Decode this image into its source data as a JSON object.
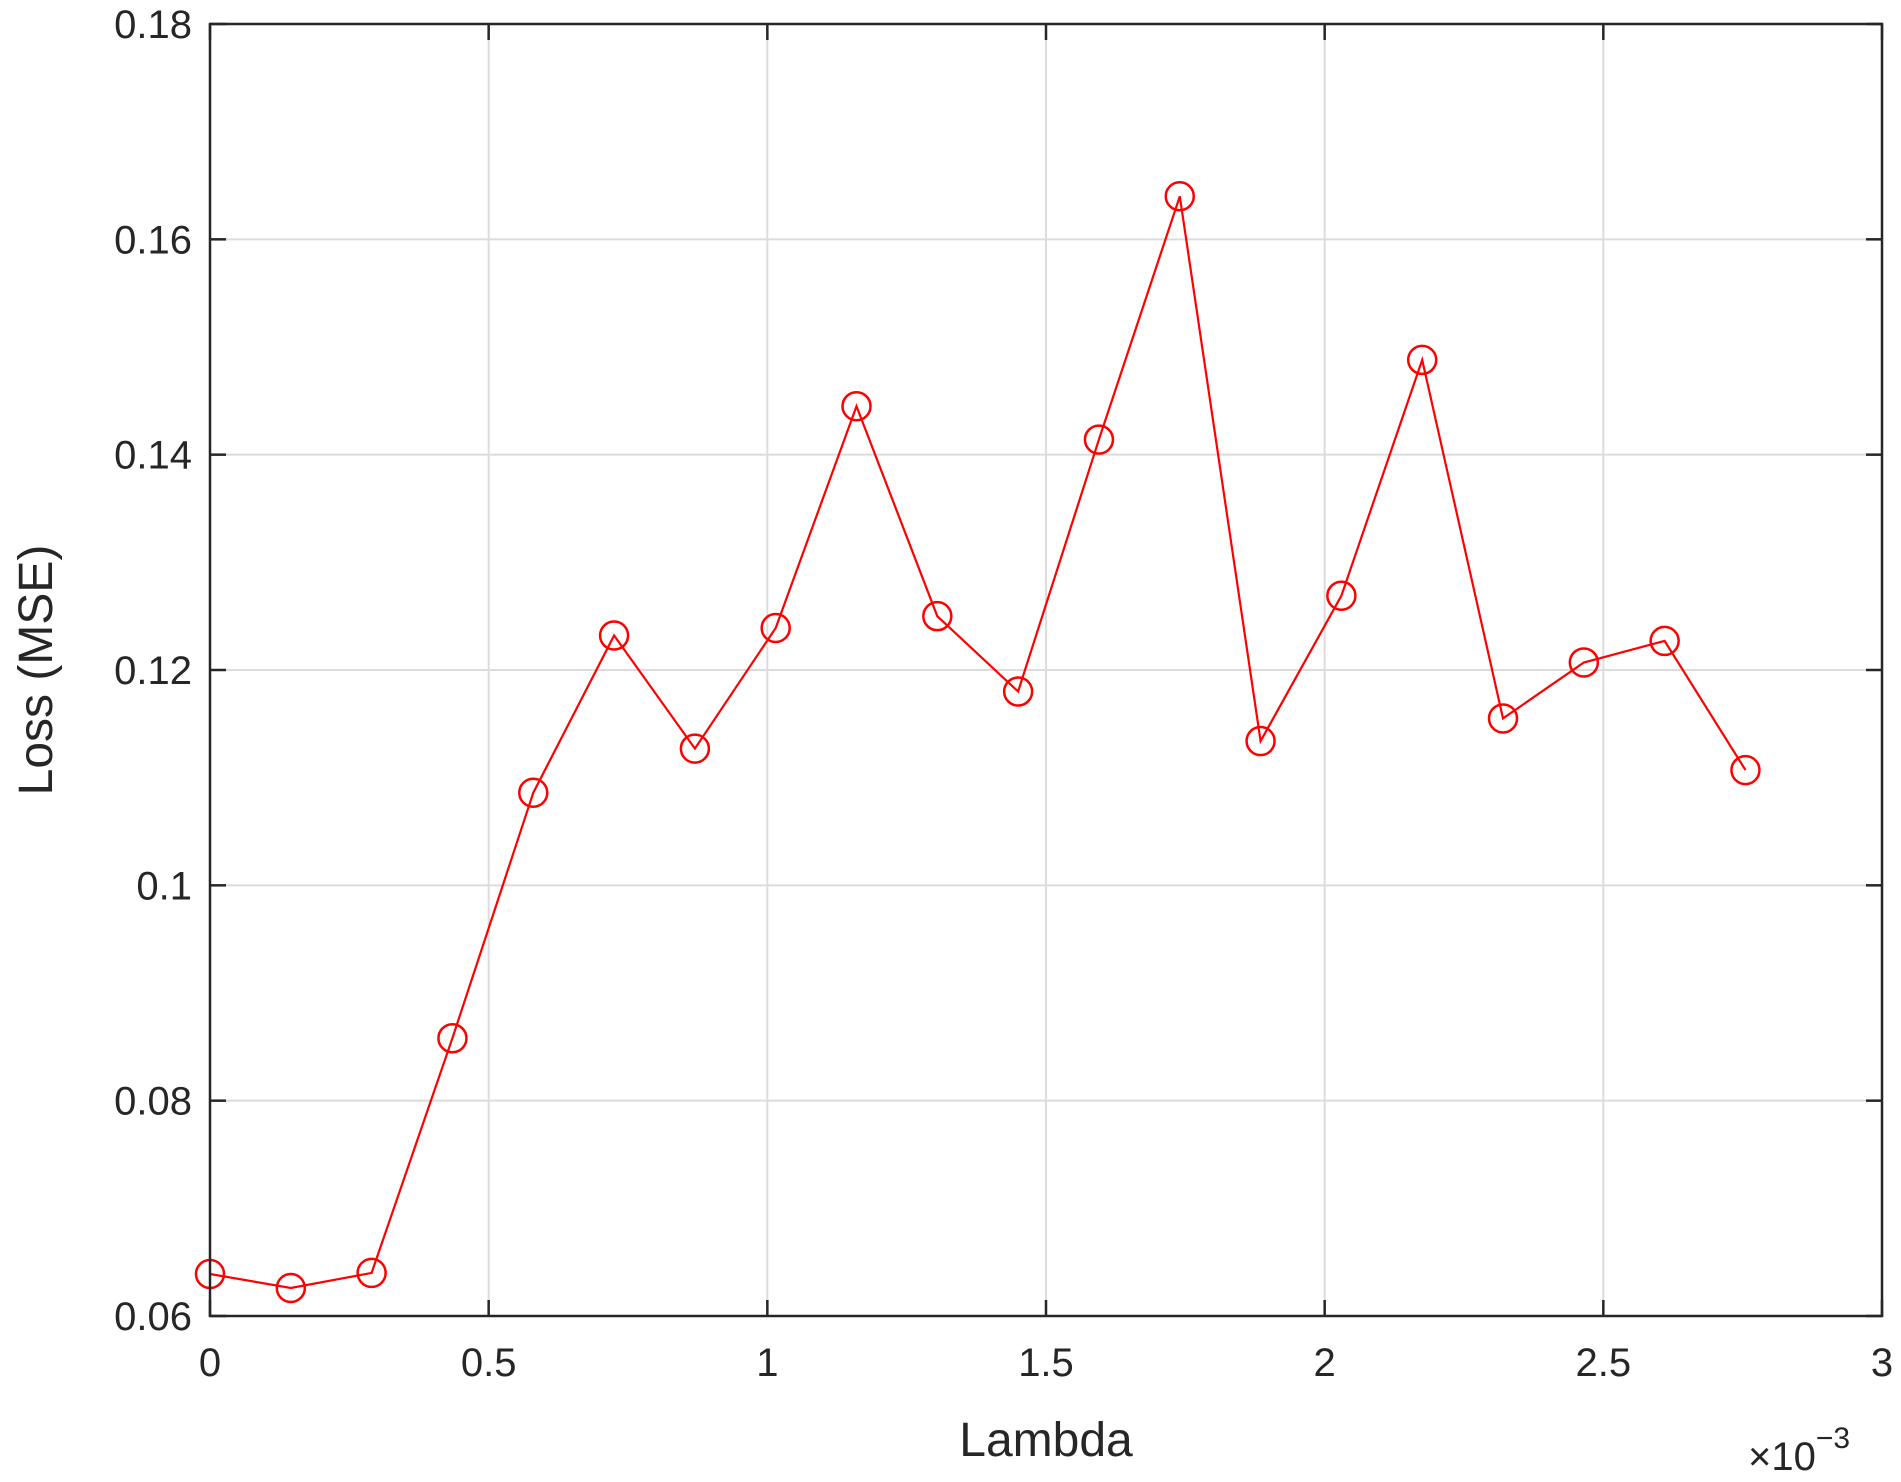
{
  "chart_data": {
    "type": "line",
    "title": "",
    "xlabel": "Lambda",
    "ylabel": "Loss (MSE)",
    "x_exponent_prefix": "×10",
    "x_exponent_power": "−3",
    "xlim": [
      0,
      3
    ],
    "ylim": [
      0.06,
      0.18
    ],
    "x_ticks": [
      0,
      0.5,
      1,
      1.5,
      2,
      2.5,
      3
    ],
    "x_tick_labels": [
      "0",
      "0.5",
      "1",
      "1.5",
      "2",
      "2.5",
      "3"
    ],
    "y_ticks": [
      0.06,
      0.08,
      0.1,
      0.12,
      0.14,
      0.16,
      0.18
    ],
    "y_tick_labels": [
      "0.06",
      "0.08",
      "0.1",
      "0.12",
      "0.14",
      "0.16",
      "0.18"
    ],
    "grid": true,
    "marker": "circle",
    "line_color": "#ff0000",
    "series": [
      {
        "x": [
          0,
          0.145,
          0.29,
          0.435,
          0.58,
          0.725,
          0.87,
          1.015,
          1.16,
          1.305,
          1.45,
          1.595,
          1.74,
          1.885,
          2.03,
          2.175,
          2.32,
          2.465,
          2.61,
          2.755
        ],
        "y": [
          0.0639,
          0.0626,
          0.064,
          0.0858,
          0.1086,
          0.1232,
          0.1127,
          0.1239,
          0.1445,
          0.125,
          0.118,
          0.1414,
          0.164,
          0.1134,
          0.1269,
          0.1488,
          0.1155,
          0.1207,
          0.1227,
          0.1107
        ]
      }
    ]
  }
}
